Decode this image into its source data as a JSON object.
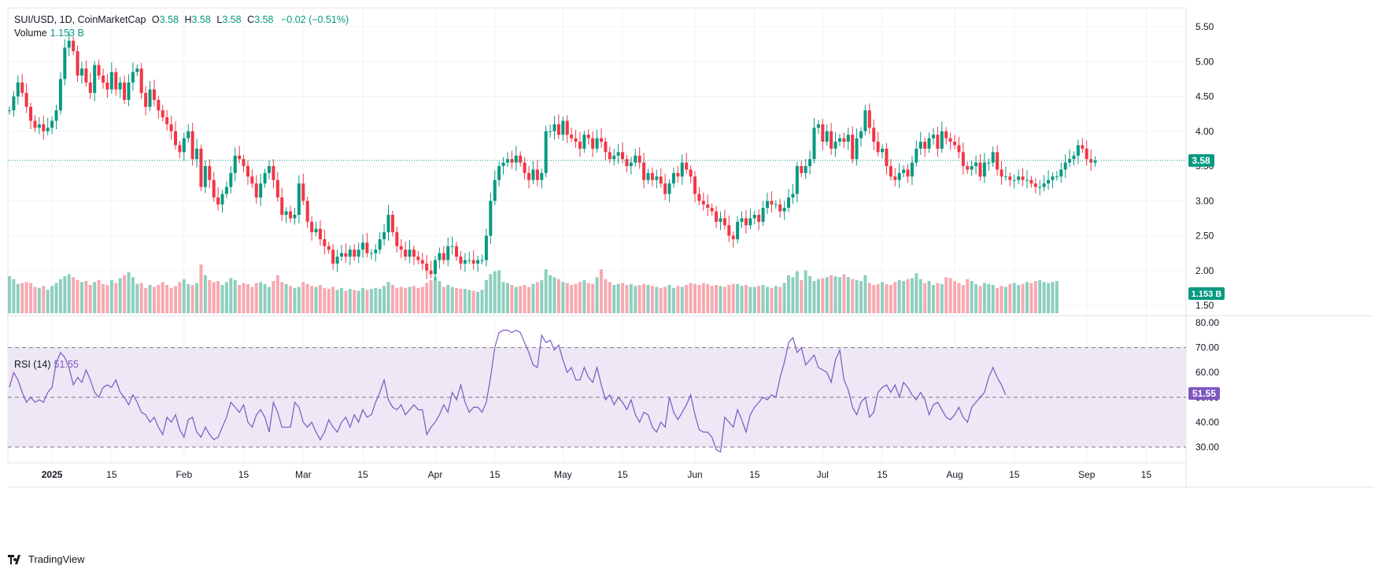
{
  "legend": {
    "symbol": "SUI/USD, 1D, CoinMarketCap",
    "o_label": "O",
    "o_value": "3.58",
    "h_label": "H",
    "h_value": "3.58",
    "l_label": "L",
    "l_value": "3.58",
    "c_label": "C",
    "c_value": "3.58",
    "change": "−0.02 (−0.51%)",
    "volume_label": "Volume",
    "volume_value": "1.153 B",
    "rsi_label": "RSI (14)",
    "rsi_value": "51.55"
  },
  "badges": {
    "price": "3.58",
    "volume": "1.153 B",
    "rsi": "51.55"
  },
  "footer": {
    "brand": "TradingView"
  },
  "colors": {
    "up": "#089981",
    "down": "#f23645",
    "up_vol": "#8dcfbf",
    "down_vol": "#f7a9b0",
    "rsi": "#7e57c2",
    "rsi_band": "#ede7f6"
  },
  "chart_data": {
    "type": "candlestick",
    "price_axis": {
      "ticks": [
        "5.50",
        "5.00",
        "4.50",
        "4.00",
        "3.50",
        "3.00",
        "2.50",
        "2.00",
        "1.50"
      ],
      "range": [
        1.5,
        5.5
      ]
    },
    "rsi_axis": {
      "ticks": [
        "80.00",
        "70.00",
        "60.00",
        "50.00",
        "40.00",
        "30.00"
      ],
      "bands": [
        30,
        70
      ],
      "mid": 50
    },
    "time_ticks": [
      {
        "label": "2025",
        "day": 10,
        "bold": true
      },
      {
        "label": "15",
        "day": 24
      },
      {
        "label": "Feb",
        "day": 41
      },
      {
        "label": "15",
        "day": 55
      },
      {
        "label": "Mar",
        "day": 69
      },
      {
        "label": "15",
        "day": 83
      },
      {
        "label": "Apr",
        "day": 100
      },
      {
        "label": "15",
        "day": 114
      },
      {
        "label": "May",
        "day": 130
      },
      {
        "label": "15",
        "day": 144
      },
      {
        "label": "Jun",
        "day": 161
      },
      {
        "label": "15",
        "day": 175
      },
      {
        "label": "Jul",
        "day": 191
      },
      {
        "label": "15",
        "day": 205
      },
      {
        "label": "Aug",
        "day": 222
      },
      {
        "label": "15",
        "day": 236
      },
      {
        "label": "Sep",
        "day": 253
      },
      {
        "label": "15",
        "day": 267
      }
    ],
    "last_price": 3.58,
    "close_series": [
      4.3,
      4.5,
      4.7,
      4.55,
      4.35,
      4.15,
      4.05,
      4.1,
      4.0,
      4.05,
      4.15,
      4.3,
      4.75,
      5.2,
      5.3,
      5.15,
      4.8,
      4.9,
      4.7,
      4.55,
      4.95,
      4.8,
      4.7,
      4.6,
      4.85,
      4.6,
      4.7,
      4.45,
      4.7,
      4.85,
      4.9,
      4.55,
      4.35,
      4.6,
      4.45,
      4.3,
      4.2,
      4.1,
      4.0,
      3.8,
      3.7,
      3.9,
      4.0,
      3.6,
      3.75,
      3.2,
      3.5,
      3.3,
      3.05,
      2.95,
      3.1,
      3.2,
      3.4,
      3.65,
      3.6,
      3.5,
      3.35,
      3.25,
      3.05,
      3.25,
      3.4,
      3.5,
      3.3,
      3.05,
      2.8,
      2.85,
      2.75,
      2.8,
      3.25,
      3.0,
      2.7,
      2.55,
      2.6,
      2.45,
      2.35,
      2.3,
      2.1,
      2.2,
      2.25,
      2.2,
      2.3,
      2.2,
      2.3,
      2.4,
      2.25,
      2.25,
      2.3,
      2.45,
      2.55,
      2.8,
      2.55,
      2.35,
      2.3,
      2.2,
      2.3,
      2.2,
      2.15,
      2.1,
      2.0,
      1.95,
      2.15,
      2.25,
      2.15,
      2.35,
      2.35,
      2.2,
      2.1,
      2.15,
      2.15,
      2.1,
      2.15,
      2.15,
      2.5,
      3.0,
      3.3,
      3.5,
      3.55,
      3.6,
      3.55,
      3.65,
      3.55,
      3.4,
      3.3,
      3.45,
      3.3,
      3.4,
      4.0,
      4.0,
      4.1,
      3.95,
      4.15,
      3.95,
      3.9,
      3.85,
      3.75,
      3.95,
      3.9,
      3.75,
      3.9,
      3.85,
      3.7,
      3.6,
      3.65,
      3.7,
      3.6,
      3.5,
      3.55,
      3.65,
      3.55,
      3.3,
      3.4,
      3.3,
      3.35,
      3.25,
      3.1,
      3.25,
      3.4,
      3.35,
      3.55,
      3.45,
      3.35,
      3.1,
      3.0,
      2.95,
      2.9,
      2.85,
      2.7,
      2.75,
      2.65,
      2.5,
      2.45,
      2.7,
      2.75,
      2.65,
      2.75,
      2.8,
      2.7,
      2.9,
      3.0,
      2.95,
      2.95,
      2.85,
      2.9,
      3.05,
      3.1,
      3.5,
      3.4,
      3.5,
      3.6,
      4.05,
      4.1,
      3.85,
      4.0,
      3.75,
      3.85,
      3.9,
      3.85,
      3.95,
      3.6,
      3.9,
      4.0,
      4.3,
      4.05,
      3.85,
      3.7,
      3.75,
      3.5,
      3.35,
      3.3,
      3.4,
      3.45,
      3.35,
      3.55,
      3.75,
      3.85,
      3.75,
      3.9,
      3.95,
      3.75,
      4.0,
      3.9,
      3.85,
      3.8,
      3.7,
      3.5,
      3.45,
      3.5,
      3.55,
      3.35,
      3.55,
      3.55,
      3.7,
      3.45,
      3.35,
      3.35,
      3.3,
      3.3,
      3.35,
      3.3,
      3.3,
      3.25,
      3.2,
      3.2,
      3.25,
      3.3,
      3.35,
      3.35,
      3.45,
      3.55,
      3.6,
      3.65,
      3.8,
      3.75,
      3.6,
      3.55,
      3.58
    ],
    "volume_series_billion": [
      1.9,
      1.75,
      1.5,
      1.55,
      1.6,
      1.55,
      1.35,
      1.3,
      1.4,
      1.2,
      1.4,
      1.55,
      1.75,
      1.9,
      2.0,
      1.85,
      1.7,
      1.6,
      1.65,
      1.45,
      1.6,
      1.7,
      1.5,
      1.45,
      1.7,
      1.55,
      1.8,
      1.95,
      2.1,
      1.85,
      1.5,
      1.55,
      1.3,
      1.45,
      1.35,
      1.45,
      1.6,
      1.45,
      1.3,
      1.4,
      1.6,
      1.75,
      1.5,
      1.45,
      1.55,
      2.5,
      1.95,
      1.7,
      1.6,
      1.65,
      1.45,
      1.6,
      1.8,
      1.7,
      1.45,
      1.55,
      1.5,
      1.35,
      1.55,
      1.6,
      1.5,
      1.35,
      1.65,
      1.95,
      1.6,
      1.5,
      1.4,
      1.3,
      1.35,
      1.6,
      1.5,
      1.4,
      1.35,
      1.45,
      1.3,
      1.25,
      1.35,
      1.2,
      1.3,
      1.15,
      1.25,
      1.2,
      1.15,
      1.3,
      1.2,
      1.25,
      1.3,
      1.25,
      1.4,
      1.6,
      1.45,
      1.3,
      1.35,
      1.3,
      1.35,
      1.4,
      1.3,
      1.35,
      1.55,
      1.7,
      1.85,
      1.65,
      1.35,
      1.45,
      1.35,
      1.3,
      1.25,
      1.25,
      1.2,
      1.15,
      1.1,
      1.2,
      1.7,
      2.0,
      2.15,
      2.2,
      1.6,
      1.55,
      1.45,
      1.35,
      1.4,
      1.45,
      1.35,
      1.5,
      1.6,
      1.7,
      2.25,
      1.95,
      1.85,
      1.75,
      1.6,
      1.55,
      1.45,
      1.5,
      1.6,
      1.7,
      1.55,
      1.5,
      1.85,
      2.25,
      1.75,
      1.6,
      1.45,
      1.5,
      1.55,
      1.45,
      1.5,
      1.4,
      1.45,
      1.5,
      1.45,
      1.4,
      1.35,
      1.3,
      1.35,
      1.45,
      1.3,
      1.4,
      1.35,
      1.45,
      1.55,
      1.5,
      1.45,
      1.55,
      1.5,
      1.4,
      1.45,
      1.4,
      1.35,
      1.45,
      1.5,
      1.5,
      1.4,
      1.45,
      1.35,
      1.35,
      1.4,
      1.45,
      1.35,
      1.3,
      1.4,
      1.35,
      1.55,
      1.95,
      1.85,
      2.15,
      1.7,
      2.2,
      1.9,
      1.65,
      1.75,
      1.8,
      1.85,
      1.95,
      1.9,
      1.85,
      2.0,
      1.85,
      1.75,
      1.7,
      1.65,
      1.95,
      1.55,
      1.45,
      1.5,
      1.6,
      1.5,
      1.45,
      1.6,
      1.7,
      1.65,
      1.75,
      1.8,
      2.05,
      1.75,
      1.55,
      1.65,
      1.45,
      1.55,
      1.5,
      1.85,
      1.8,
      1.65,
      1.55,
      1.45,
      1.75,
      1.65,
      1.5,
      1.4,
      1.55,
      1.5,
      1.45,
      1.3,
      1.4,
      1.35,
      1.5,
      1.55,
      1.45,
      1.5,
      1.6,
      1.55,
      1.65,
      1.7,
      1.6,
      1.55,
      1.6,
      1.65
    ],
    "rsi_series": [
      54,
      60,
      57,
      52,
      48,
      50,
      48,
      49,
      48,
      52,
      54,
      64,
      68,
      66,
      62,
      55,
      58,
      56,
      61,
      57,
      52,
      50,
      54,
      55,
      54,
      57,
      52,
      50,
      47,
      51,
      48,
      44,
      43,
      40,
      42,
      38,
      35,
      42,
      40,
      43,
      37,
      34,
      41,
      42,
      36,
      34,
      38,
      35,
      33,
      34,
      38,
      42,
      48,
      46,
      44,
      47,
      40,
      38,
      43,
      45,
      42,
      36,
      48,
      44,
      38,
      38,
      38,
      48,
      46,
      40,
      38,
      40,
      36,
      33,
      36,
      41,
      38,
      36,
      40,
      42,
      38,
      43,
      40,
      45,
      42,
      43,
      48,
      52,
      57,
      49,
      46,
      45,
      47,
      43,
      45,
      47,
      45,
      45,
      35,
      38,
      40,
      43,
      47,
      44,
      52,
      49,
      55,
      48,
      44,
      46,
      46,
      44,
      48,
      58,
      70,
      76,
      77,
      77,
      76,
      77,
      76,
      72,
      68,
      63,
      62,
      75,
      72,
      73,
      69,
      71,
      65,
      60,
      62,
      57,
      57,
      62,
      58,
      56,
      62,
      55,
      49,
      51,
      47,
      50,
      48,
      45,
      49,
      43,
      40,
      44,
      43,
      38,
      36,
      40,
      38,
      50,
      44,
      41,
      44,
      47,
      51,
      43,
      37,
      36,
      36,
      34,
      29,
      28,
      42,
      40,
      38,
      45,
      41,
      36,
      43,
      46,
      48,
      50,
      49,
      51,
      50,
      58,
      64,
      72,
      74,
      68,
      70,
      63,
      65,
      67,
      62,
      61,
      60,
      56,
      65,
      69,
      57,
      53,
      46,
      43,
      48,
      50,
      42,
      44,
      52,
      54,
      55,
      52,
      55,
      50,
      56,
      54,
      51,
      49,
      52,
      49,
      43,
      47,
      48,
      45,
      42,
      41,
      43,
      46,
      42,
      40,
      46,
      48,
      50,
      52,
      58,
      62,
      58,
      55,
      51
    ]
  }
}
